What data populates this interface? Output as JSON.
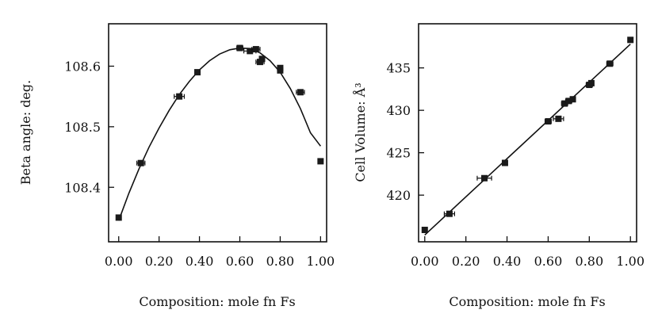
{
  "chart_data": [
    {
      "type": "scatter",
      "title": "",
      "xlabel": "Composition: mole fn Fs",
      "ylabel": "Beta angle: deg.",
      "xlim": [
        -0.05,
        1.03
      ],
      "ylim": [
        108.31,
        108.67
      ],
      "xticks": [
        "0.00",
        "0.20",
        "0.40",
        "0.60",
        "0.80",
        "1.00"
      ],
      "xtick_values": [
        0.0,
        0.2,
        0.4,
        0.6,
        0.8,
        1.0
      ],
      "yticks": [
        "108.4",
        "108.5",
        "108.6"
      ],
      "ytick_values": [
        108.4,
        108.5,
        108.6
      ],
      "grid": false,
      "series": [
        {
          "x": [
            0.0,
            0.11,
            0.3,
            0.39,
            0.6,
            0.65,
            0.68,
            0.7,
            0.71,
            0.8,
            0.8,
            0.9,
            1.0
          ],
          "y": [
            108.35,
            108.44,
            108.55,
            108.59,
            108.63,
            108.625,
            108.628,
            108.607,
            108.612,
            108.597,
            108.593,
            108.557,
            108.443
          ],
          "x_error": [
            0.01,
            0.02,
            0.025,
            0.01,
            0.015,
            0.03,
            0.02,
            0.02,
            0.01,
            0.01,
            0.01,
            0.02,
            0.01
          ]
        }
      ],
      "fit_curve": {
        "x": [
          0.0,
          0.05,
          0.1,
          0.15,
          0.2,
          0.25,
          0.3,
          0.35,
          0.4,
          0.45,
          0.5,
          0.55,
          0.6,
          0.65,
          0.7,
          0.75,
          0.8,
          0.85,
          0.9,
          0.95,
          1.0
        ],
        "y": [
          108.345,
          108.39,
          108.43,
          108.466,
          108.498,
          108.527,
          108.553,
          108.575,
          108.594,
          108.609,
          108.62,
          108.627,
          108.63,
          108.629,
          108.622,
          108.609,
          108.59,
          108.563,
          108.53,
          108.49,
          108.468
        ]
      }
    },
    {
      "type": "scatter",
      "title": "",
      "xlabel": "Composition: mole fn Fs",
      "ylabel": "Cell Volume: Å³",
      "xlim": [
        -0.03,
        1.03
      ],
      "ylim": [
        414.5,
        440.2
      ],
      "xticks": [
        "0.00",
        "0.20",
        "0.40",
        "0.60",
        "0.80",
        "1.00"
      ],
      "xtick_values": [
        0.0,
        0.2,
        0.4,
        0.6,
        0.8,
        1.0
      ],
      "yticks": [
        "420",
        "425",
        "430",
        "435"
      ],
      "ytick_values": [
        420,
        425,
        430,
        435
      ],
      "grid": false,
      "series": [
        {
          "x": [
            0.0,
            0.12,
            0.29,
            0.39,
            0.6,
            0.65,
            0.68,
            0.7,
            0.72,
            0.8,
            0.81,
            0.9,
            1.0
          ],
          "y": [
            415.9,
            417.8,
            422.0,
            423.8,
            428.7,
            429.0,
            430.8,
            431.1,
            431.3,
            433.0,
            433.2,
            435.5,
            438.3
          ],
          "x_error": [
            0.0,
            0.025,
            0.035,
            0.0,
            0.015,
            0.025,
            0.015,
            0.015,
            0.0,
            0.015,
            0.0,
            0.015,
            0.0
          ]
        }
      ],
      "fit_line": {
        "x": [
          0.0,
          1.0
        ],
        "y": [
          415.3,
          437.8
        ]
      }
    }
  ]
}
